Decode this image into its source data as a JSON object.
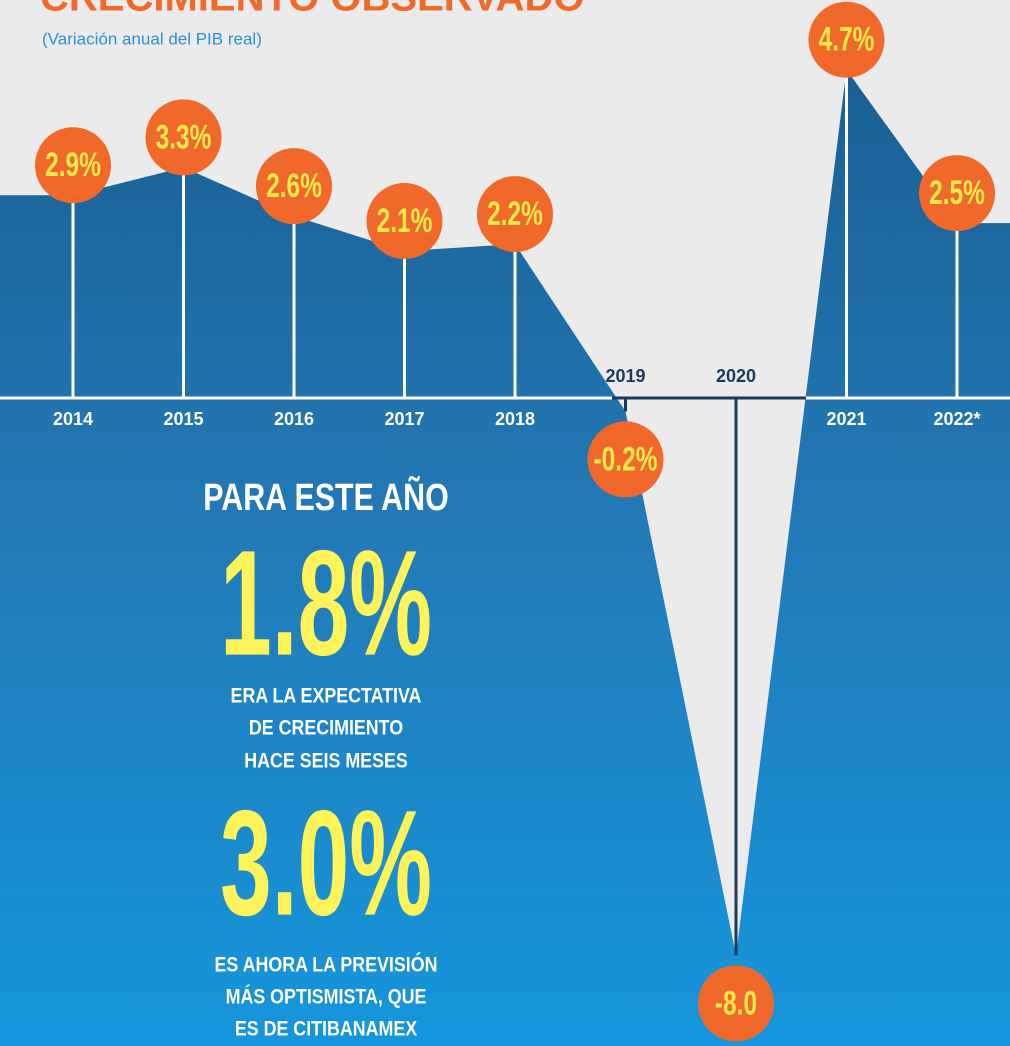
{
  "chart_data": {
    "type": "area",
    "title": "CRECIMIENTO OBSERVADO",
    "subtitle": "(Variación anual del PIB real)",
    "categories": [
      "2014",
      "2015",
      "2016",
      "2017",
      "2018",
      "2019",
      "2020",
      "2021",
      "2022*"
    ],
    "values": [
      2.9,
      3.3,
      2.6,
      2.1,
      2.2,
      -0.2,
      -8.0,
      4.7,
      2.5
    ],
    "value_labels": [
      "2.9%",
      "3.3%",
      "2.6%",
      "2.1%",
      "2.2%",
      "-0.2%",
      "-8.0",
      "4.7%",
      "2.5%"
    ],
    "ylim": [
      -9.3,
      5.7
    ],
    "color": "#1a8ad0",
    "bubble_color": "#f0692a",
    "annotations": {
      "heading": "PARA ESTE AÑO",
      "items": [
        {
          "figure": "1.8%",
          "lines": [
            "ERA LA EXPECTATIVA",
            "DE CRECIMIENTO",
            "HACE SEIS MESES"
          ]
        },
        {
          "figure": "3.0%",
          "lines": [
            "ES AHORA LA PREVISIÓN",
            "MÁS OPTISMISTA, QUE",
            "ES DE CITIBANAMEX"
          ]
        }
      ]
    }
  }
}
